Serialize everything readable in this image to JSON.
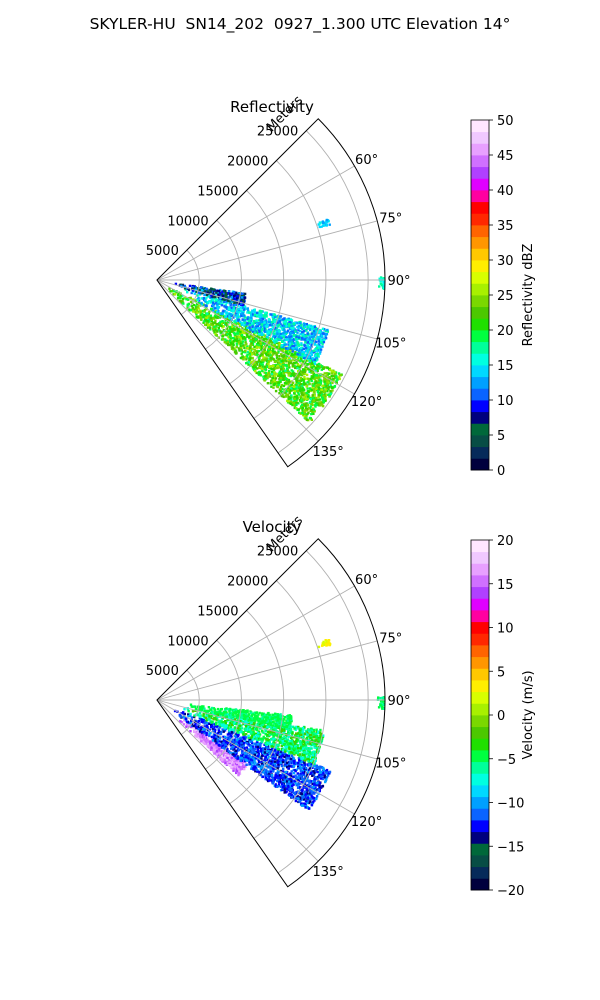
{
  "figure_title": "SKYLER-HU  SN14_202  0927_1.300 UTC Elevation 14°",
  "chart_data": [
    {
      "type": "polar-sector",
      "title": "Reflectivity",
      "radial_label": "Meters",
      "r_max": 27000,
      "r_ticks": [
        5000,
        10000,
        15000,
        20000,
        25000
      ],
      "r_tick_labels": [
        "5000",
        "10000",
        "15000",
        "20000",
        "25000"
      ],
      "theta_range_deg": [
        45,
        145
      ],
      "theta_ticks": [
        60,
        75,
        90,
        105,
        120,
        135
      ],
      "theta_tick_labels": [
        "60°",
        "75°",
        "90°",
        "105°",
        "120°",
        "135°"
      ],
      "grid": true,
      "colorbar": {
        "label": "Reflectivity dBZ",
        "min": 0,
        "max": 50,
        "ticks": [
          0,
          5,
          10,
          15,
          20,
          25,
          30,
          35,
          40,
          45,
          50
        ],
        "tick_labels": [
          "0",
          "5",
          "10",
          "15",
          "20",
          "25",
          "30",
          "35",
          "40",
          "45",
          "50"
        ],
        "colors": [
          "#00003d",
          "#062a5a",
          "#074d45",
          "#00683a",
          "#00007e",
          "#0000ff",
          "#0a64ff",
          "#00a0ff",
          "#00d8ff",
          "#00ffe0",
          "#00ff9a",
          "#00ff40",
          "#20e000",
          "#4cc800",
          "#7ad800",
          "#a8f000",
          "#d8ff00",
          "#ffee00",
          "#ffc800",
          "#ff9600",
          "#ff6400",
          "#ff2800",
          "#ff0000",
          "#ff00a0",
          "#e000ff",
          "#b040ff",
          "#d070ff",
          "#e8a0ff",
          "#f0c8ff",
          "#ffe6ff"
        ]
      },
      "echo_regions": [
        {
          "theta_deg": [
            117,
            133
          ],
          "r_m": [
            1500,
            24500
          ],
          "value_range": [
            18,
            26
          ]
        },
        {
          "theta_deg": [
            106,
            118
          ],
          "r_m": [
            3000,
            21000
          ],
          "value_range": [
            10,
            18
          ]
        },
        {
          "theta_deg": [
            98,
            106
          ],
          "r_m": [
            2000,
            10500
          ],
          "value_range": [
            2,
            14
          ]
        },
        {
          "theta_deg": [
            70,
            72
          ],
          "r_m": [
            20000,
            21500
          ],
          "value_range": [
            12,
            16
          ]
        },
        {
          "theta_deg": [
            89,
            92
          ],
          "r_m": [
            26000,
            26800
          ],
          "value_range": [
            14,
            18
          ]
        }
      ]
    },
    {
      "type": "polar-sector",
      "title": "Velocity",
      "radial_label": "Meters",
      "r_max": 27000,
      "r_ticks": [
        5000,
        10000,
        15000,
        20000,
        25000
      ],
      "r_tick_labels": [
        "5000",
        "10000",
        "15000",
        "20000",
        "25000"
      ],
      "theta_range_deg": [
        45,
        145
      ],
      "theta_ticks": [
        60,
        75,
        90,
        105,
        120,
        135
      ],
      "theta_tick_labels": [
        "60°",
        "75°",
        "90°",
        "105°",
        "120°",
        "135°"
      ],
      "grid": true,
      "colorbar": {
        "label": "Velocity (m/s)",
        "min": -20,
        "max": 20,
        "ticks": [
          -20,
          -15,
          -10,
          -5,
          0,
          5,
          10,
          15,
          20
        ],
        "tick_labels": [
          "−20",
          "−15",
          "−10",
          "−5",
          "0",
          "5",
          "10",
          "15",
          "20"
        ],
        "colors": [
          "#00003d",
          "#062a5a",
          "#074d45",
          "#00683a",
          "#00007e",
          "#0000ff",
          "#0a64ff",
          "#00a0ff",
          "#00d8ff",
          "#00ffe0",
          "#00ff9a",
          "#00ff40",
          "#20e000",
          "#4cc800",
          "#7ad800",
          "#a8f000",
          "#d8ff00",
          "#ffee00",
          "#ffc800",
          "#ff9600",
          "#ff6400",
          "#ff2800",
          "#ff0000",
          "#ff00a0",
          "#e000ff",
          "#b040ff",
          "#d070ff",
          "#e8a0ff",
          "#f0c8ff",
          "#ffe6ff"
        ]
      },
      "echo_regions": [
        {
          "theta_deg": [
            125,
            133
          ],
          "r_m": [
            3000,
            13000
          ],
          "value_range": [
            14,
            18
          ]
        },
        {
          "theta_deg": [
            112,
            126
          ],
          "r_m": [
            2000,
            22000
          ],
          "value_range": [
            -14,
            -10
          ]
        },
        {
          "theta_deg": [
            100,
            112
          ],
          "r_m": [
            3000,
            20000
          ],
          "value_range": [
            -8,
            -2
          ]
        },
        {
          "theta_deg": [
            96,
            102
          ],
          "r_m": [
            3000,
            16000
          ],
          "value_range": [
            -6,
            -4
          ]
        },
        {
          "theta_deg": [
            70,
            72
          ],
          "r_m": [
            20000,
            21500
          ],
          "value_range": [
            2,
            4
          ]
        },
        {
          "theta_deg": [
            89,
            92
          ],
          "r_m": [
            26000,
            26800
          ],
          "value_range": [
            -6,
            -4
          ]
        }
      ]
    }
  ]
}
